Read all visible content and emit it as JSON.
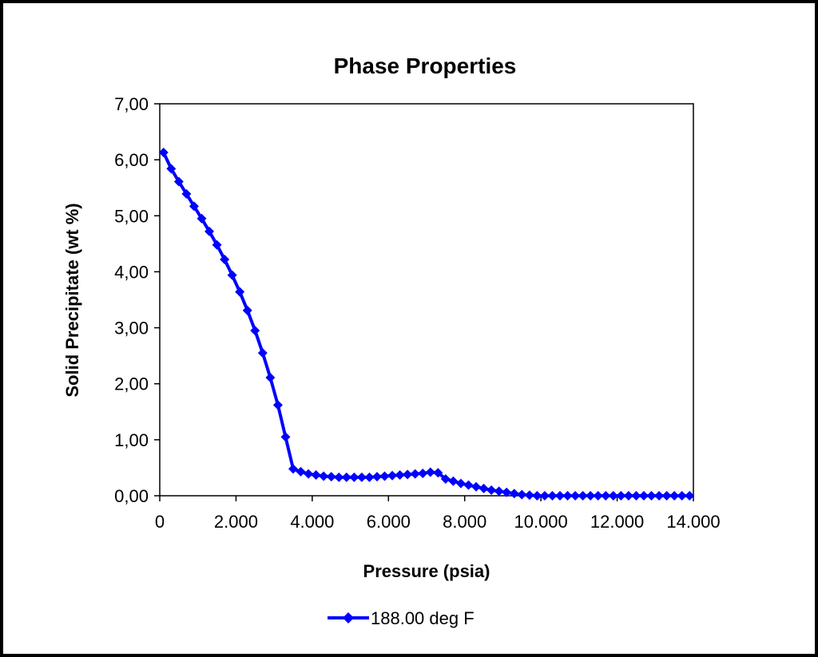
{
  "chart_data": {
    "type": "line",
    "title": "Phase Properties",
    "xlabel": "Pressure (psia)",
    "ylabel": "Solid Precipitate (wt %)",
    "xlim": [
      0,
      14000
    ],
    "ylim": [
      0,
      7
    ],
    "x_tick_values": [
      0,
      2000,
      4000,
      6000,
      8000,
      10000,
      12000,
      14000
    ],
    "x_tick_labels": [
      "0",
      "2.000",
      "4.000",
      "6.000",
      "8.000",
      "10.000",
      "12.000",
      "14.000"
    ],
    "y_tick_values": [
      0,
      1,
      2,
      3,
      4,
      5,
      6,
      7
    ],
    "y_tick_labels": [
      "0,00",
      "1,00",
      "2,00",
      "3,00",
      "4,00",
      "5,00",
      "6,00",
      "7,00"
    ],
    "grid": false,
    "legend_position": "bottom",
    "series": [
      {
        "name": "188.00 deg F",
        "color": "#0000ff",
        "marker": "diamond",
        "points": [
          [
            100,
            6.13
          ],
          [
            300,
            5.84
          ],
          [
            500,
            5.61
          ],
          [
            700,
            5.39
          ],
          [
            900,
            5.17
          ],
          [
            1100,
            4.95
          ],
          [
            1300,
            4.72
          ],
          [
            1500,
            4.48
          ],
          [
            1700,
            4.22
          ],
          [
            1900,
            3.94
          ],
          [
            2100,
            3.64
          ],
          [
            2300,
            3.31
          ],
          [
            2500,
            2.95
          ],
          [
            2700,
            2.55
          ],
          [
            2900,
            2.11
          ],
          [
            3100,
            1.62
          ],
          [
            3300,
            1.05
          ],
          [
            3500,
            0.48
          ],
          [
            3700,
            0.43
          ],
          [
            3900,
            0.39
          ],
          [
            4100,
            0.37
          ],
          [
            4300,
            0.35
          ],
          [
            4500,
            0.34
          ],
          [
            4700,
            0.33
          ],
          [
            4900,
            0.33
          ],
          [
            5100,
            0.33
          ],
          [
            5300,
            0.33
          ],
          [
            5500,
            0.33
          ],
          [
            5700,
            0.34
          ],
          [
            5900,
            0.35
          ],
          [
            6100,
            0.36
          ],
          [
            6300,
            0.37
          ],
          [
            6500,
            0.38
          ],
          [
            6700,
            0.39
          ],
          [
            6900,
            0.4
          ],
          [
            7100,
            0.42
          ],
          [
            7300,
            0.41
          ],
          [
            7500,
            0.3
          ],
          [
            7700,
            0.26
          ],
          [
            7900,
            0.22
          ],
          [
            8100,
            0.19
          ],
          [
            8300,
            0.16
          ],
          [
            8500,
            0.13
          ],
          [
            8700,
            0.1
          ],
          [
            8900,
            0.08
          ],
          [
            9100,
            0.06
          ],
          [
            9300,
            0.04
          ],
          [
            9500,
            0.02
          ],
          [
            9700,
            0.01
          ],
          [
            9900,
            0.0
          ],
          [
            10100,
            0.0
          ],
          [
            10300,
            0.0
          ],
          [
            10500,
            0.0
          ],
          [
            10700,
            0.0
          ],
          [
            10900,
            0.0
          ],
          [
            11100,
            0.0
          ],
          [
            11300,
            0.0
          ],
          [
            11500,
            0.0
          ],
          [
            11700,
            0.0
          ],
          [
            11900,
            0.0
          ],
          [
            12100,
            0.0
          ],
          [
            12300,
            0.0
          ],
          [
            12500,
            0.0
          ],
          [
            12700,
            0.0
          ],
          [
            12900,
            0.0
          ],
          [
            13100,
            0.0
          ],
          [
            13300,
            0.0
          ],
          [
            13500,
            0.0
          ],
          [
            13700,
            0.0
          ],
          [
            13900,
            0.0
          ]
        ]
      }
    ]
  }
}
